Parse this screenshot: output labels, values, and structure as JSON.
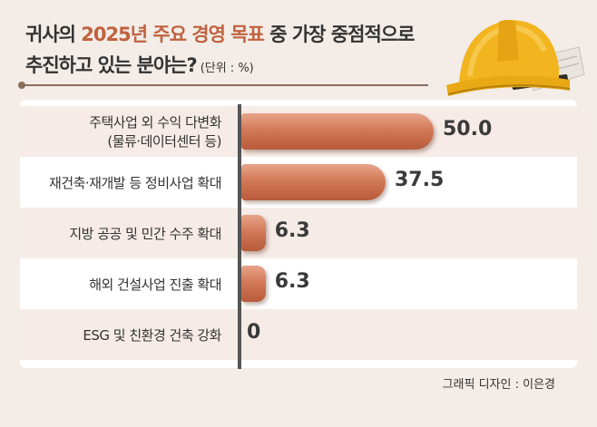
{
  "header": {
    "title_prefix": "귀사의 ",
    "title_accent": "2025년 주요 경영 목표",
    "title_suffix": " 중 가장 중점적으로",
    "title_line2": "추진하고 있는 분야는?",
    "unit": "(단위 : %)"
  },
  "chart_data": {
    "type": "bar",
    "orientation": "horizontal",
    "categories": [
      [
        "주택사업 외 수익 다변화",
        "(물류·데이터센터 등)"
      ],
      [
        "재건축·재개발 등 정비사업 확대"
      ],
      [
        "지방 공공 및 민간 수주 확대"
      ],
      [
        "해외 건설사업 진출 확대"
      ],
      [
        "ESG 및 친환경 건축 강화"
      ]
    ],
    "values": [
      50.0,
      37.5,
      6.3,
      6.3,
      0
    ],
    "value_labels": [
      "50.0",
      "37.5",
      "6.3",
      "6.3",
      "0"
    ],
    "xlim": [
      0,
      50
    ],
    "bar_color": "#cf7351"
  },
  "footer": {
    "credit": "그래픽 디자인 : 이은경"
  }
}
